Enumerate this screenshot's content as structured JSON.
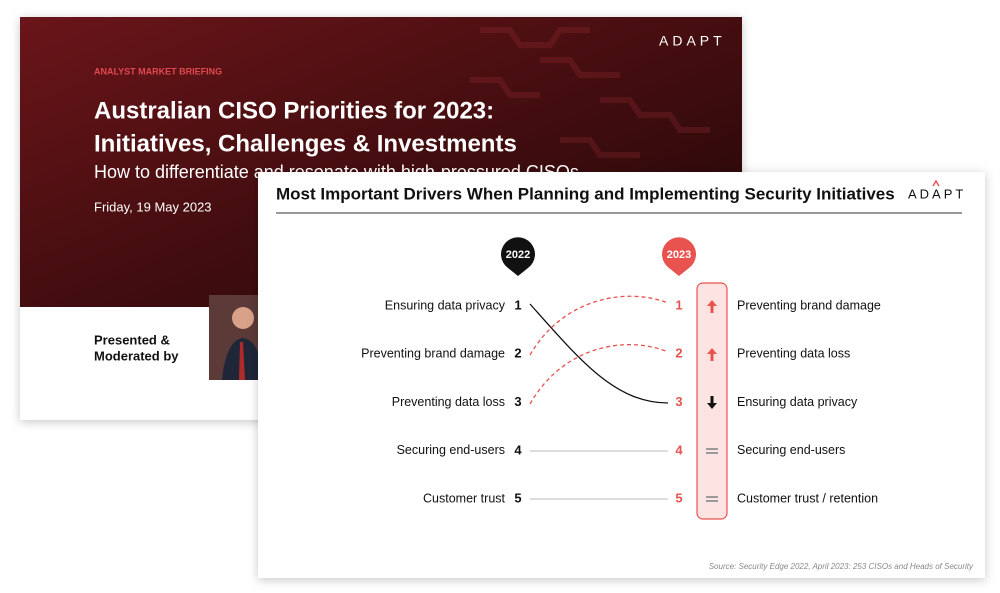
{
  "back_slide": {
    "eyebrow": "ANALYST MARKET BRIEFING",
    "title_lines": [
      "Australian CISO Priorities for 2023:",
      "Initiatives, Challenges & Investments"
    ],
    "subtitle": "How to differentiate and resonate with high-pressured CISOs",
    "date": "Friday, 19 May 2023",
    "presenter_lines": [
      "Presented &",
      "Moderated by"
    ],
    "logo": "ADAPT"
  },
  "front_slide": {
    "title": "Most Important Drivers When Planning and Implementing Security Initiatives",
    "logo": "ADAPT",
    "left_year": "2022",
    "right_year": "2023",
    "left": [
      {
        "label": "Ensuring data privacy",
        "rank": 1
      },
      {
        "label": "Preventing brand damage",
        "rank": 2
      },
      {
        "label": "Preventing data loss",
        "rank": 3
      },
      {
        "label": "Securing end-users",
        "rank": 4
      },
      {
        "label": "Customer trust",
        "rank": 5
      }
    ],
    "right": [
      {
        "label": "Preventing brand damage",
        "rank": 1
      },
      {
        "label": "Preventing data loss",
        "rank": 2
      },
      {
        "label": "Ensuring data privacy",
        "rank": 3
      },
      {
        "label": "Securing end-users",
        "rank": 4
      },
      {
        "label": "Customer trust / retention",
        "rank": 5
      }
    ],
    "source": "Source: Security Edge 2022, April 2023: 253 CISOs and Heads of Security"
  }
}
